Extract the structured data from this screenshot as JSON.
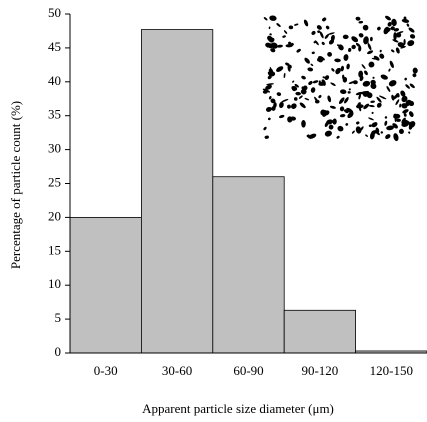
{
  "chart_data": {
    "type": "bar",
    "categories": [
      "0-30",
      "30-60",
      "60-90",
      "90-120",
      "120-150"
    ],
    "values": [
      20,
      47.7,
      26,
      6.3,
      0.3
    ],
    "color": "#c0c0c0",
    "ylim": [
      0,
      50
    ],
    "yticks": [
      0,
      5,
      10,
      15,
      20,
      25,
      30,
      35,
      40,
      45,
      50
    ],
    "xlabel": "Apparent particle size diameter (μm)",
    "ylabel": "Percentage of particle count (%)"
  }
}
